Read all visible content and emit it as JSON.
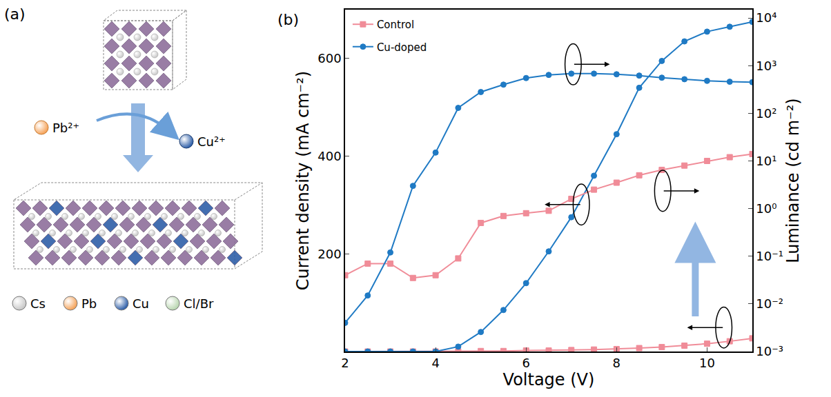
{
  "chart_data": {
    "type": "line",
    "panel_label": "(b)",
    "x_label": "Voltage (V)",
    "y_label": "Current density (mA cm⁻²)",
    "y2_label": "Luminance (cd m⁻²)",
    "x": [
      2,
      2.5,
      3,
      3.5,
      4,
      4.5,
      5,
      5.5,
      6,
      6.5,
      7,
      7.5,
      8,
      8.5,
      9,
      9.5,
      10,
      10.5,
      11
    ],
    "xlim": [
      2,
      11
    ],
    "xticks": [
      2,
      4,
      6,
      8,
      10
    ],
    "ylim": [
      0,
      700
    ],
    "yticks": [
      200,
      400,
      600
    ],
    "y2lim": [
      0.001,
      15000
    ],
    "y2ticks": [
      {
        "value": 0.001,
        "label": "10⁻³"
      },
      {
        "value": 0.01,
        "label": "10⁻²"
      },
      {
        "value": 0.1,
        "label": "10⁻¹"
      },
      {
        "value": 1,
        "label": "10⁰"
      },
      {
        "value": 10,
        "label": "10¹"
      },
      {
        "value": 100,
        "label": "10²"
      },
      {
        "value": 1000,
        "label": "10³"
      },
      {
        "value": 10000,
        "label": "10⁴"
      }
    ],
    "log": "y2",
    "legend": "upper left",
    "grid": false,
    "series": [
      {
        "name": "Control",
        "color": "#f08c98",
        "marker": "square",
        "line_style": "solid",
        "values": [
          0,
          0,
          0,
          0,
          0,
          0,
          1,
          1,
          2,
          2,
          3,
          4,
          5,
          7,
          9,
          12,
          16,
          21,
          27
        ]
      },
      {
        "name": "Cu-doped",
        "color": "#1f7ac4",
        "marker": "circle",
        "line_style": "solid",
        "values": [
          0,
          0,
          0,
          0,
          0,
          10,
          40,
          85,
          140,
          205,
          275,
          360,
          445,
          540,
          595,
          635,
          655,
          665,
          675
        ]
      },
      {
        "name": "Control",
        "color": "#f08c98",
        "marker": "square",
        "line_style": "solid",
        "axis": "y2",
        "values": [
          0.04,
          0.07,
          0.07,
          0.035,
          0.04,
          0.09,
          0.5,
          0.7,
          0.8,
          0.9,
          1.6,
          2.5,
          3.5,
          5,
          6.5,
          8,
          10,
          12,
          14
        ]
      },
      {
        "name": "Cu-doped",
        "color": "#1f7ac4",
        "marker": "circle",
        "line_style": "solid",
        "axis": "y2",
        "values": [
          0.004,
          0.015,
          0.12,
          3,
          15,
          130,
          280,
          400,
          550,
          640,
          680,
          680,
          660,
          620,
          560,
          520,
          480,
          460,
          450
        ]
      }
    ]
  },
  "diagram": {
    "panel_label": "(a)",
    "ions": [
      {
        "label": "Pb²⁺",
        "color": "#f5a35a"
      },
      {
        "label": "Cu²⁺",
        "color": "#2f5fa8"
      }
    ],
    "legend": [
      {
        "label": "Cs",
        "color": "#c8c8c8"
      },
      {
        "label": "Pb",
        "color": "#f5a35a"
      },
      {
        "label": "Cu",
        "color": "#2f5fa8"
      },
      {
        "label": "Cl/Br",
        "color": "#b9d6b0"
      }
    ]
  }
}
